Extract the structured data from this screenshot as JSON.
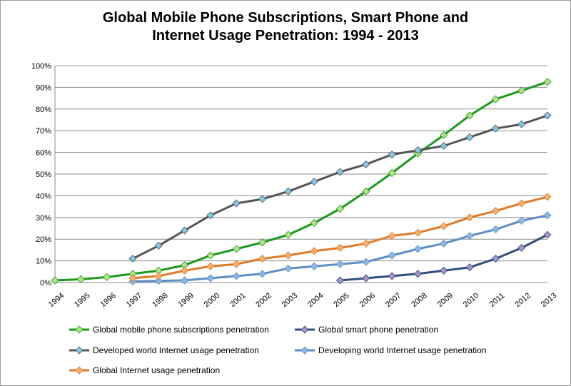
{
  "chart_data": {
    "type": "line",
    "title_line1": "Global Mobile Phone Subscriptions, Smart Phone and",
    "title_line2": "Internet Usage Penetration: 1994 - 2013",
    "xlabel": "",
    "ylabel": "",
    "ylim": [
      0,
      100
    ],
    "y_ticks": [
      "0%",
      "10%",
      "20%",
      "30%",
      "40%",
      "50%",
      "60%",
      "70%",
      "80%",
      "90%",
      "100%"
    ],
    "grid": true,
    "legend_position": "bottom",
    "categories": [
      "1994",
      "1995",
      "1996",
      "1997",
      "1998",
      "1999",
      "2000",
      "2001",
      "2002",
      "2003",
      "2004",
      "2005",
      "2006",
      "2007",
      "2008",
      "2009",
      "2010",
      "2011",
      "2012",
      "2013"
    ],
    "series": [
      {
        "name": "Global mobile phone subscriptions penetration",
        "color": "#1a9a1a",
        "marker": "#b8e08a",
        "values": [
          1,
          1.5,
          2.5,
          4,
          5.5,
          8,
          12.5,
          15.5,
          18.5,
          22,
          27.5,
          34,
          42,
          50.5,
          59.5,
          68,
          77,
          84.5,
          88.5,
          92.5
        ]
      },
      {
        "name": "Global smart phone penetration",
        "color": "#2f4f7a",
        "marker": "#a890c8",
        "values": [
          null,
          null,
          null,
          null,
          null,
          null,
          null,
          null,
          null,
          null,
          null,
          1,
          2,
          3,
          4,
          5.5,
          7,
          11,
          16,
          22
        ]
      },
      {
        "name": "Developed world Internet usage penetration",
        "color": "#555555",
        "marker": "#7ec8e8",
        "values": [
          null,
          null,
          null,
          11,
          17,
          24,
          31,
          36.5,
          38.5,
          42,
          46.5,
          51,
          54.5,
          59,
          61,
          63,
          67,
          71,
          73,
          77
        ]
      },
      {
        "name": "Developing world Internet usage penetration",
        "color": "#5b8ec6",
        "marker": "#8ab8e0",
        "values": [
          null,
          null,
          null,
          0.5,
          0.8,
          1,
          2,
          3,
          4,
          6.5,
          7.5,
          8.5,
          9.5,
          12.5,
          15.5,
          18,
          21.5,
          24.5,
          28.5,
          31
        ]
      },
      {
        "name": "Global Internet usage penetration",
        "color": "#e07a28",
        "marker": "#f0b070",
        "values": [
          null,
          null,
          null,
          2,
          3,
          5.5,
          7.5,
          8.5,
          11,
          12.5,
          14.5,
          16,
          18,
          21.5,
          23,
          26,
          30,
          33,
          36.5,
          39.5
        ]
      }
    ]
  }
}
